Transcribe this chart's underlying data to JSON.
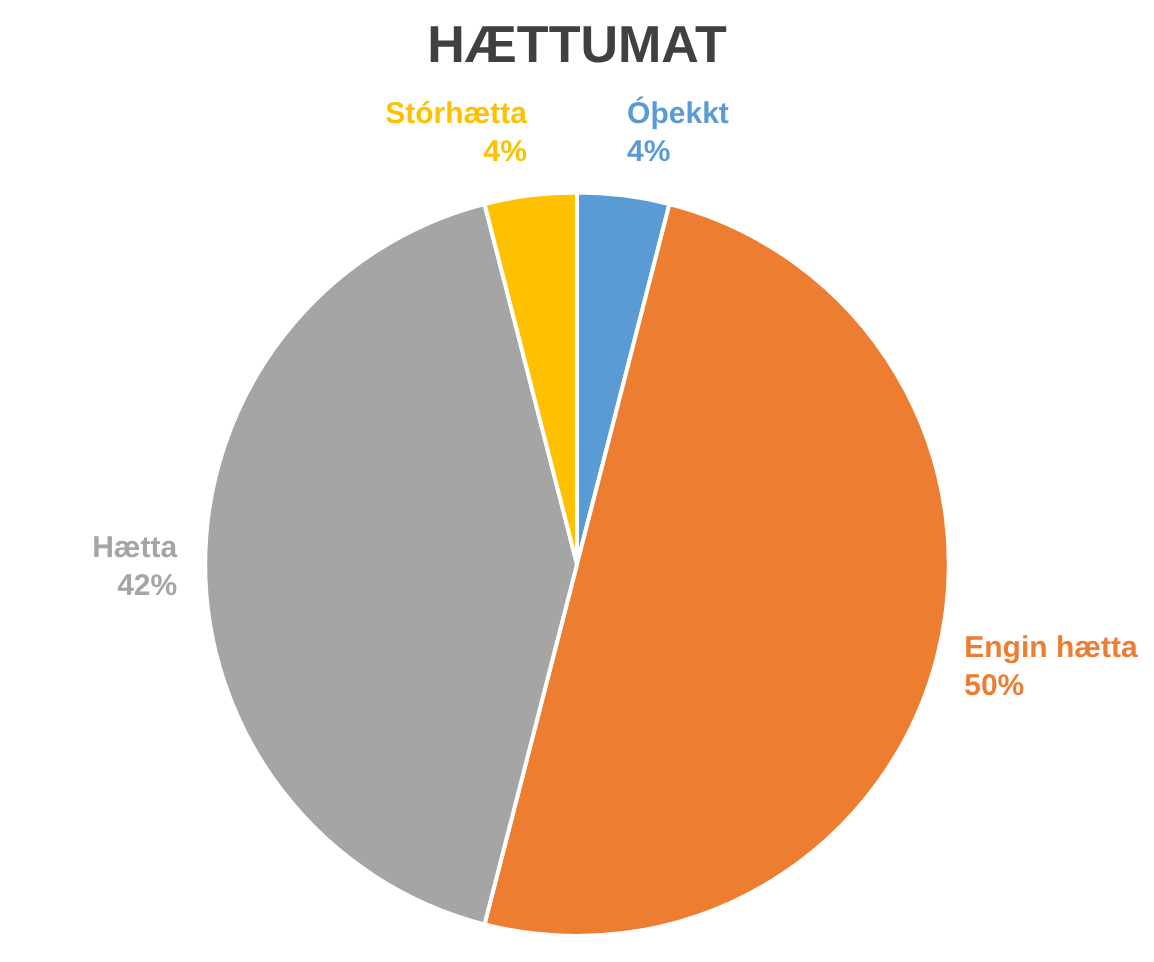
{
  "chart_data": {
    "type": "pie",
    "title": "HÆTTUMAT",
    "categories": [
      "Óþekkt",
      "Engin hætta",
      "Hætta",
      "Stórhætta"
    ],
    "values": [
      4,
      50,
      42,
      4
    ],
    "value_labels": [
      "4%",
      "50%",
      "42%",
      "4%"
    ],
    "colors": [
      "#5b9bd5",
      "#ed7d31",
      "#a5a5a5",
      "#ffc000"
    ],
    "legend": false
  }
}
